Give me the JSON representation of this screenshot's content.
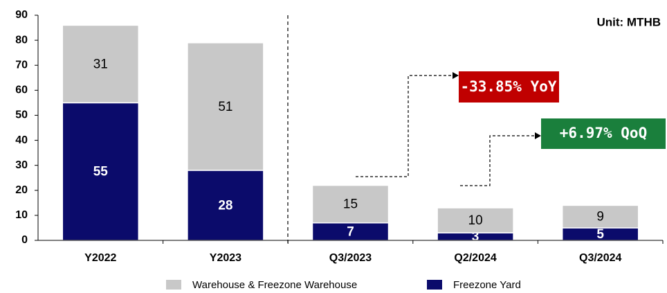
{
  "chart_data": {
    "type": "bar",
    "stacked": true,
    "unit_label": "Unit: MTHB",
    "categories": [
      "Y2022",
      "Y2023",
      "Q3/2023",
      "Q2/2024",
      "Q3/2024"
    ],
    "series": [
      {
        "name": "Freezone Yard",
        "color": "#0b0b6b",
        "label_color": "#ffffff",
        "values": [
          55,
          28,
          7,
          3,
          5
        ]
      },
      {
        "name": "Warehouse & Freezone Warehouse",
        "color": "#c8c8c8",
        "label_color": "#000000",
        "values": [
          31,
          51,
          15,
          10,
          9
        ]
      }
    ],
    "ylim": [
      0,
      90
    ],
    "yticks": [
      0,
      10,
      20,
      30,
      40,
      50,
      60,
      70,
      80,
      90
    ],
    "annotations": [
      {
        "text": "-33.85% YoY",
        "color": "#c00000"
      },
      {
        "text": "+6.97% QoQ",
        "color": "#1a7f3c"
      }
    ]
  }
}
